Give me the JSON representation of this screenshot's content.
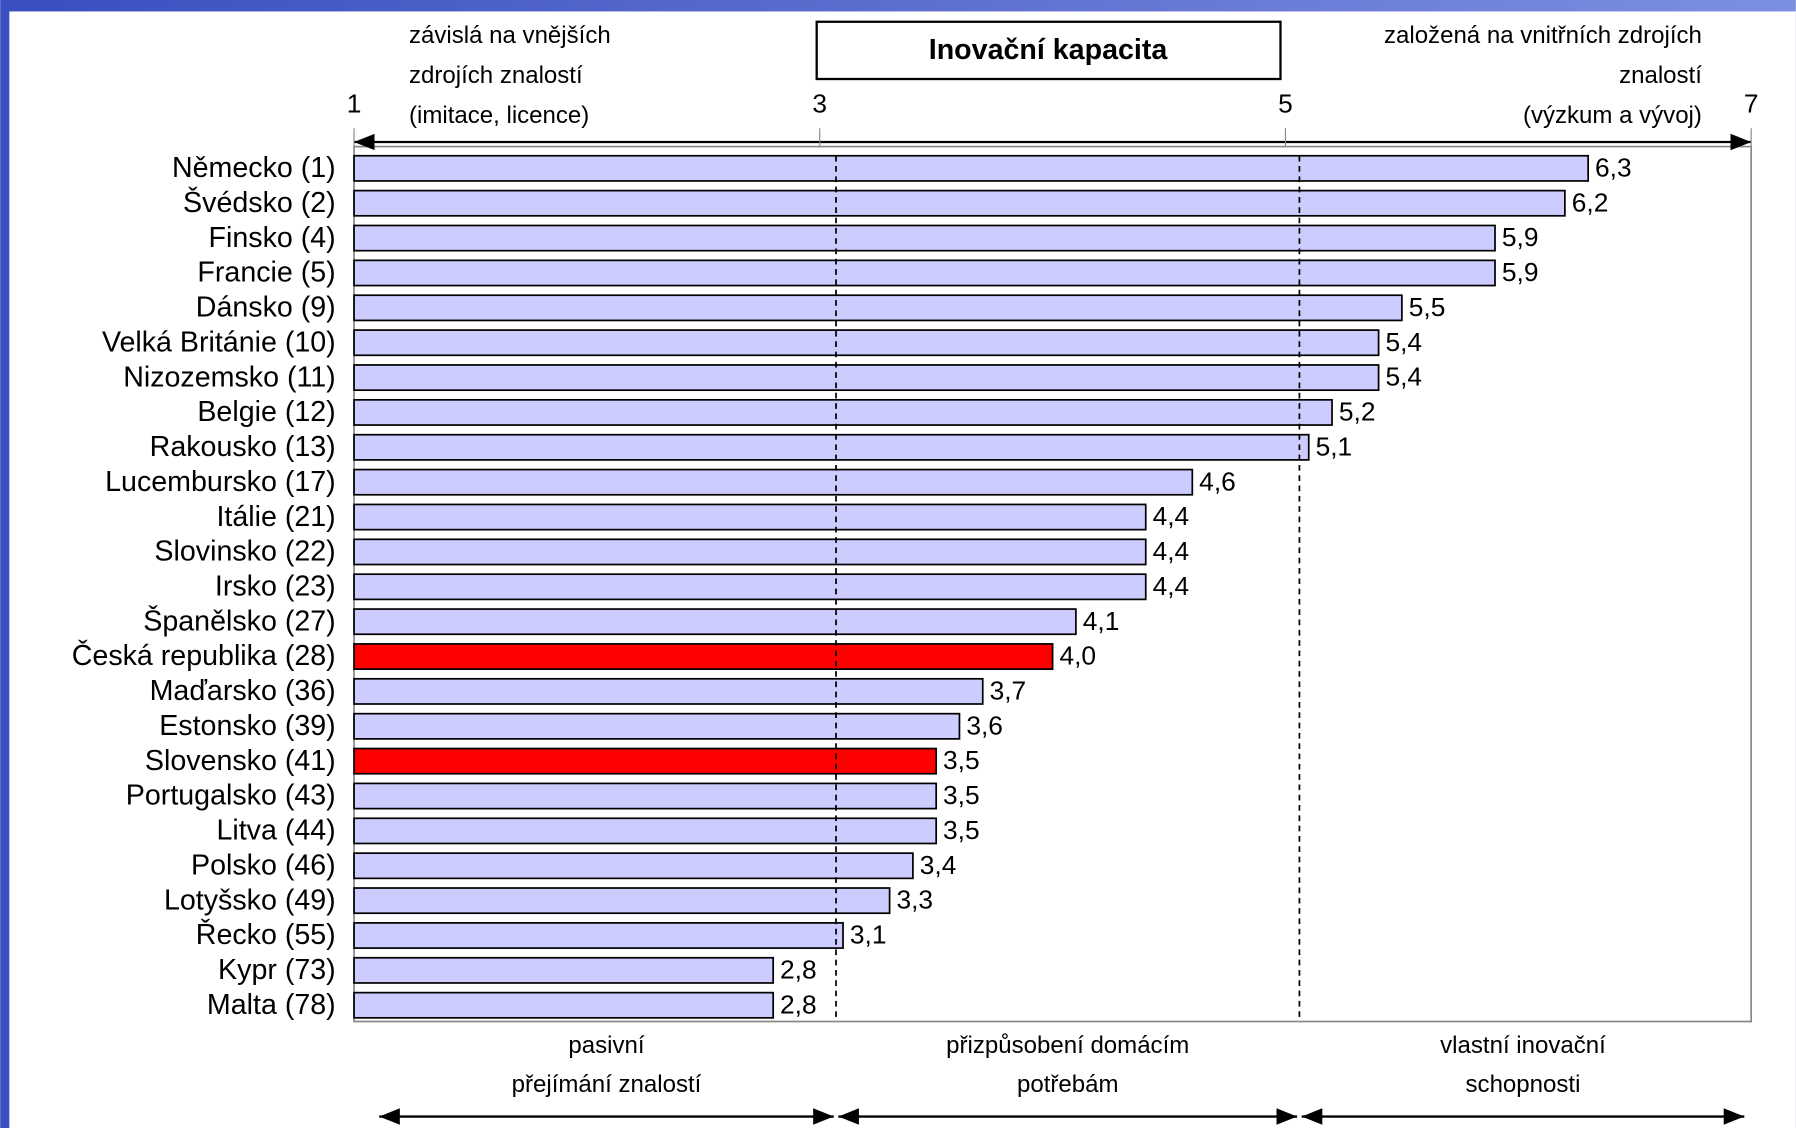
{
  "chart_data": {
    "type": "bar",
    "orientation": "horizontal",
    "title": "Inovační kapacita",
    "categories": [
      "Německo (1)",
      "Švédsko (2)",
      "Finsko (4)",
      "Francie (5)",
      "Dánsko (9)",
      "Velká Británie (10)",
      "Nizozemsko (11)",
      "Belgie (12)",
      "Rakousko (13)",
      "Lucembursko (17)",
      "Itálie (21)",
      "Slovinsko (22)",
      "Irsko (23)",
      "Španělsko (27)",
      "Česká republika (28)",
      "Maďarsko (36)",
      "Estonsko (39)",
      "Slovensko (41)",
      "Portugalsko (43)",
      "Litva (44)",
      "Polsko (46)",
      "Lotyšsko (49)",
      "Řecko (55)",
      "Kypr (73)",
      "Malta (78)"
    ],
    "values": [
      6.3,
      6.2,
      5.9,
      5.9,
      5.5,
      5.4,
      5.4,
      5.2,
      5.1,
      4.6,
      4.4,
      4.4,
      4.4,
      4.1,
      4.0,
      3.7,
      3.6,
      3.5,
      3.5,
      3.5,
      3.4,
      3.3,
      3.1,
      2.8,
      2.8
    ],
    "value_labels": [
      "6,3",
      "6,2",
      "5,9",
      "5,9",
      "5,5",
      "5,4",
      "5,4",
      "5,2",
      "5,1",
      "4,6",
      "4,4",
      "4,4",
      "4,4",
      "4,1",
      "4,0",
      "3,7",
      "3,6",
      "3,5",
      "3,5",
      "3,5",
      "3,4",
      "3,3",
      "3,1",
      "2,8",
      "2,8"
    ],
    "colors": [
      "#ccccff",
      "#ccccff",
      "#ccccff",
      "#ccccff",
      "#ccccff",
      "#ccccff",
      "#ccccff",
      "#ccccff",
      "#ccccff",
      "#ccccff",
      "#ccccff",
      "#ccccff",
      "#ccccff",
      "#ccccff",
      "#ff0000",
      "#ccccff",
      "#ccccff",
      "#ff0000",
      "#ccccff",
      "#ccccff",
      "#ccccff",
      "#ccccff",
      "#ccccff",
      "#ccccff",
      "#ccccff"
    ],
    "xlim": [
      1,
      7
    ],
    "xticks": [
      1,
      3,
      5,
      7
    ],
    "zone_lines": [
      3.07,
      5.06
    ],
    "top_left_note": [
      "závislá na vnějších",
      "zdrojích znalostí",
      "(imitace, licence)"
    ],
    "top_right_note": [
      "založená na vnitřních zdrojích",
      "znalostí",
      "(výzkum a vývoj)"
    ],
    "zones": [
      [
        "pasivní",
        "přejímání znalostí"
      ],
      [
        "přizpůsobení domácím",
        "potřebám"
      ],
      [
        "vlastní inovační",
        "schopnosti"
      ]
    ]
  }
}
